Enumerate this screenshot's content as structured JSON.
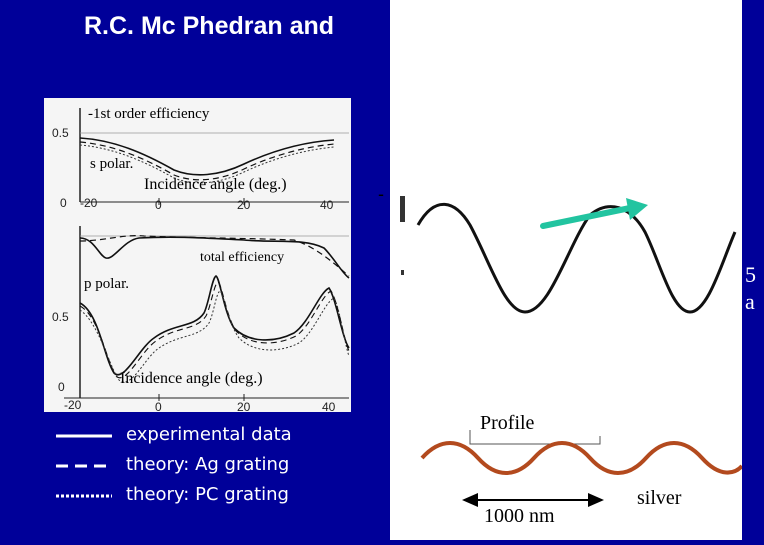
{
  "title": "R.C. Mc Phedran and",
  "left_figure": {
    "top_plot": {
      "label": "-1st order efficiency",
      "polarization": "s polar.",
      "xlabel": "Incidence angle (deg.)",
      "y_ticks": [
        "0.5",
        "0"
      ],
      "x_ticks": [
        "-20",
        "0",
        "20",
        "40"
      ]
    },
    "bottom_plot": {
      "label": "total efficiency",
      "polarization": "p polar.",
      "xlabel": "Incidence angle (deg.)",
      "y_ticks": [
        "0.5",
        "0"
      ],
      "x_ticks": [
        "-20",
        "0",
        "20",
        "40"
      ]
    }
  },
  "legend": [
    {
      "style": "solid",
      "label": "experimental data"
    },
    {
      "style": "dashed",
      "label": "theory: Ag grating"
    },
    {
      "style": "dotted",
      "label": "theory: PC grating"
    }
  ],
  "right_figure": {
    "dash": "-",
    "arrow_color": "#22c4a0"
  },
  "profile": {
    "label": "Profile",
    "material": "silver",
    "scale": "1000 nm",
    "wave_color": "#b34a1e",
    "arrow_color": "#000000"
  },
  "edge_fragments": [
    "5",
    "a"
  ]
}
